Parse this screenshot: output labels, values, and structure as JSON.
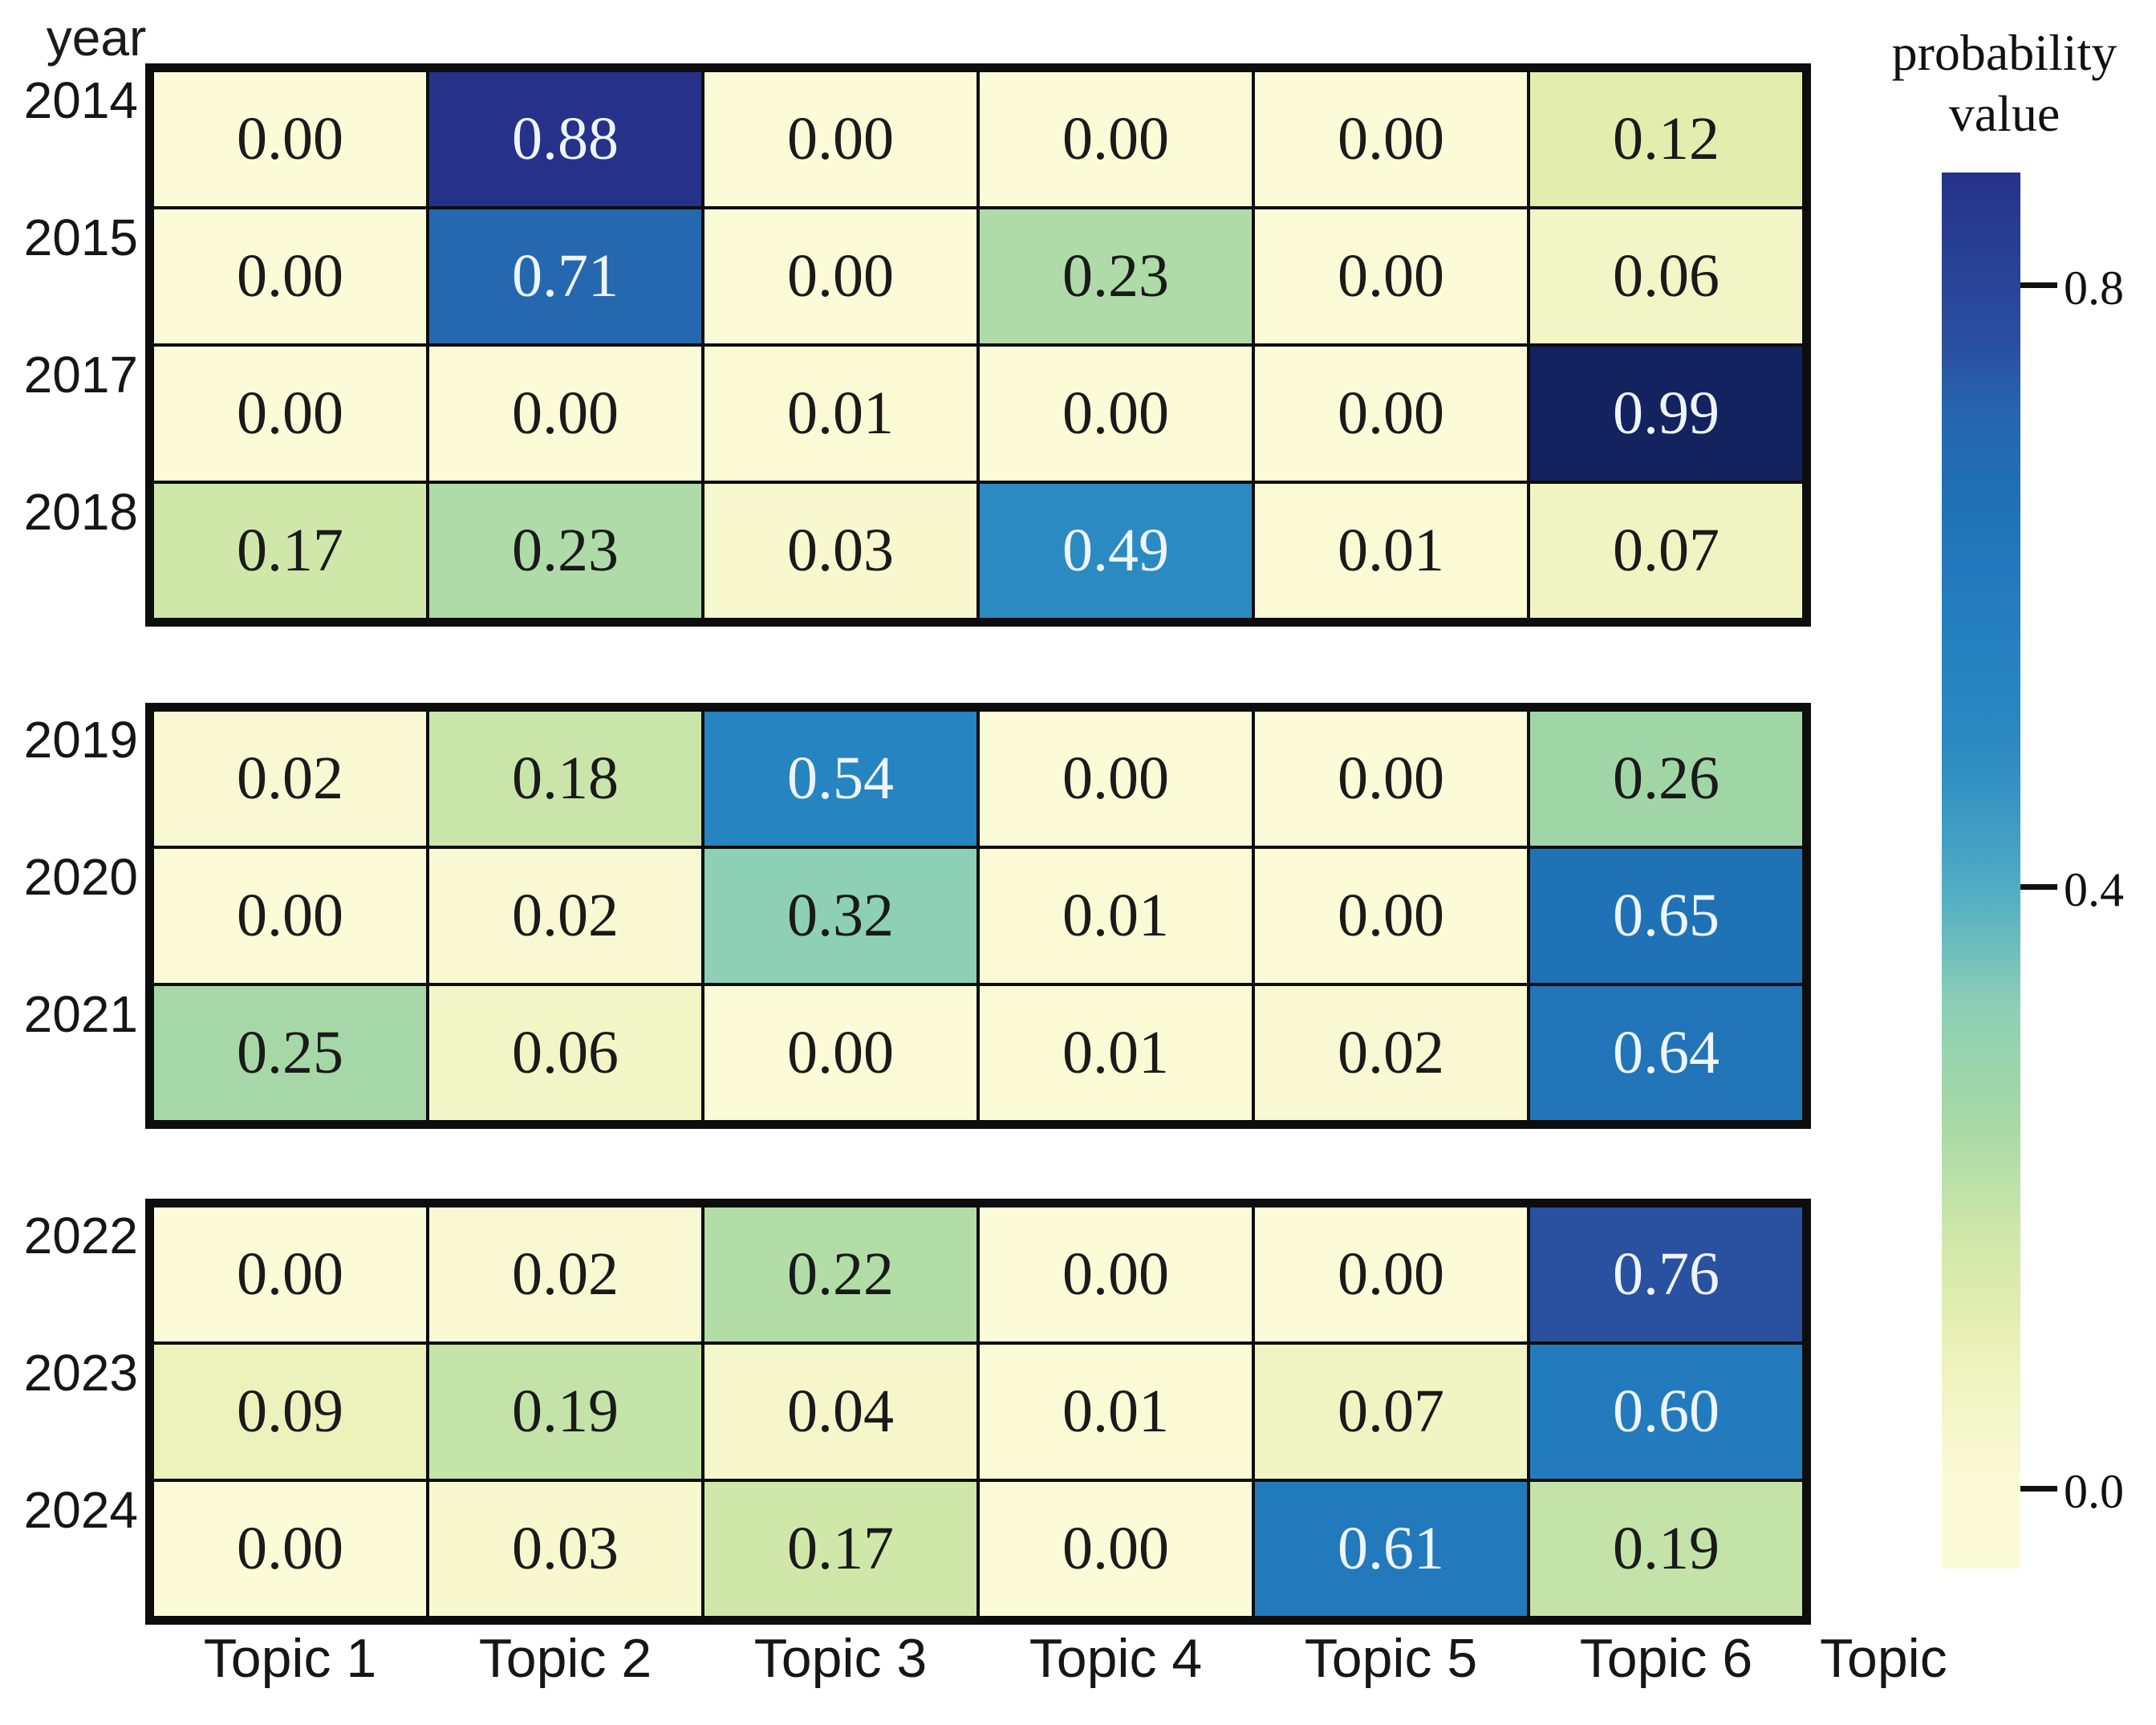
{
  "figure": {
    "background": "#ffffff"
  },
  "chart_data": {
    "type": "heatmap",
    "title": "",
    "xlabel": "Topic",
    "ylabel": "year",
    "categories": [
      "Topic 1",
      "Topic 2",
      "Topic 3",
      "Topic 4",
      "Topic 5",
      "Topic 6"
    ],
    "row_groups": [
      {
        "rows": [
          "2014",
          "2015",
          "2017",
          "2018"
        ],
        "values": [
          [
            0.0,
            0.88,
            0.0,
            0.0,
            0.0,
            0.12
          ],
          [
            0.0,
            0.71,
            0.0,
            0.23,
            0.0,
            0.06
          ],
          [
            0.0,
            0.0,
            0.01,
            0.0,
            0.0,
            0.99
          ],
          [
            0.17,
            0.23,
            0.03,
            0.49,
            0.01,
            0.07
          ]
        ]
      },
      {
        "rows": [
          "2019",
          "2020",
          "2021"
        ],
        "values": [
          [
            0.02,
            0.18,
            0.54,
            0.0,
            0.0,
            0.26
          ],
          [
            0.0,
            0.02,
            0.32,
            0.01,
            0.0,
            0.65
          ],
          [
            0.25,
            0.06,
            0.0,
            0.01,
            0.02,
            0.64
          ]
        ]
      },
      {
        "rows": [
          "2022",
          "2023",
          "2024"
        ],
        "values": [
          [
            0.0,
            0.02,
            0.22,
            0.0,
            0.0,
            0.76
          ],
          [
            0.09,
            0.19,
            0.04,
            0.01,
            0.07,
            0.6
          ],
          [
            0.0,
            0.03,
            0.17,
            0.0,
            0.61,
            0.19
          ]
        ]
      }
    ],
    "cell_value_format": "0.00",
    "colorbar": {
      "title_line1": "probability",
      "title_line2": "value",
      "ticks": [
        {
          "value": 0.8,
          "label": "0.8"
        },
        {
          "value": 0.4,
          "label": "0.4"
        },
        {
          "value": 0.0,
          "label": "0.0"
        }
      ],
      "top_value": 0.875,
      "bottom_value": -0.053
    },
    "colormap_stops": [
      [
        0.0,
        "#fbfbd8"
      ],
      [
        0.05,
        "#f4f6c8"
      ],
      [
        0.09,
        "#ecf2bc"
      ],
      [
        0.12,
        "#e2edae"
      ],
      [
        0.17,
        "#cfe7a9"
      ],
      [
        0.22,
        "#b2dda7"
      ],
      [
        0.26,
        "#a0d6a6"
      ],
      [
        0.32,
        "#8dd0b5"
      ],
      [
        0.4,
        "#4fabc4"
      ],
      [
        0.49,
        "#2b8ac1"
      ],
      [
        0.54,
        "#2684c0"
      ],
      [
        0.61,
        "#2279bc"
      ],
      [
        0.65,
        "#2072b6"
      ],
      [
        0.71,
        "#2568b0"
      ],
      [
        0.76,
        "#2a50a0"
      ],
      [
        0.88,
        "#263189"
      ],
      [
        0.99,
        "#13235f"
      ],
      [
        1.0,
        "#101f5a"
      ]
    ],
    "text_colors": {
      "dark": "#1a1a1a",
      "light": "#eef5ff",
      "light_threshold": 0.45
    },
    "grid_line_color": "#0d0d0d"
  }
}
